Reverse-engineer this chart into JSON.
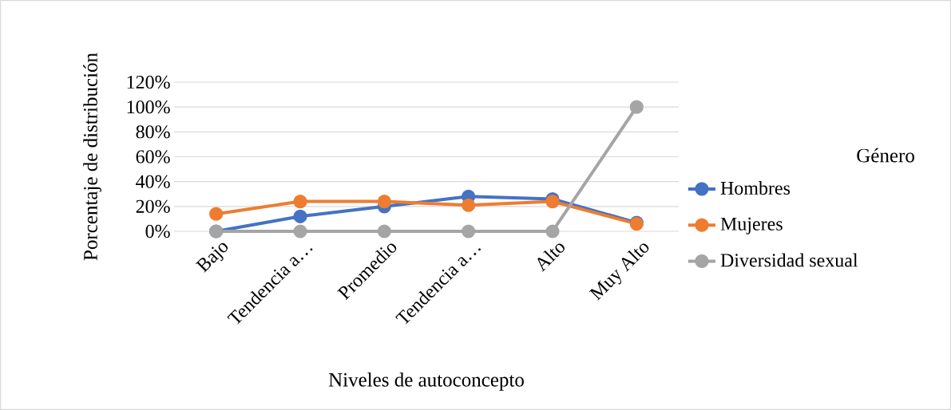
{
  "chart_data": {
    "type": "line",
    "xlabel": "Niveles de autoconcepto",
    "ylabel": "Porcentaje de distribución",
    "legend_title": "Género",
    "categories": [
      "Bajo",
      "Tendencia a…",
      "Promedio",
      "Tendencia a…",
      "Alto",
      "Muy Alto"
    ],
    "series": [
      {
        "name": "Hombres",
        "color": "#4472c4",
        "values": [
          0,
          12,
          20,
          28,
          26,
          7
        ]
      },
      {
        "name": "Mujeres",
        "color": "#ed7d31",
        "values": [
          14,
          24,
          24,
          21,
          24,
          6
        ]
      },
      {
        "name": "Diversidad sexual",
        "color": "#a5a5a5",
        "values": [
          0,
          0,
          0,
          0,
          0,
          100
        ]
      }
    ],
    "ylim": [
      0,
      120
    ],
    "yticks": [
      {
        "value": 0,
        "label": "0%"
      },
      {
        "value": 20,
        "label": "20%"
      },
      {
        "value": 40,
        "label": "40%"
      },
      {
        "value": 60,
        "label": "60%"
      },
      {
        "value": 80,
        "label": "80%"
      },
      {
        "value": 100,
        "label": "100%"
      },
      {
        "value": 120,
        "label": "120%"
      }
    ],
    "grid": "y",
    "legend": "right",
    "marker": "circle",
    "line_style": "solid"
  }
}
